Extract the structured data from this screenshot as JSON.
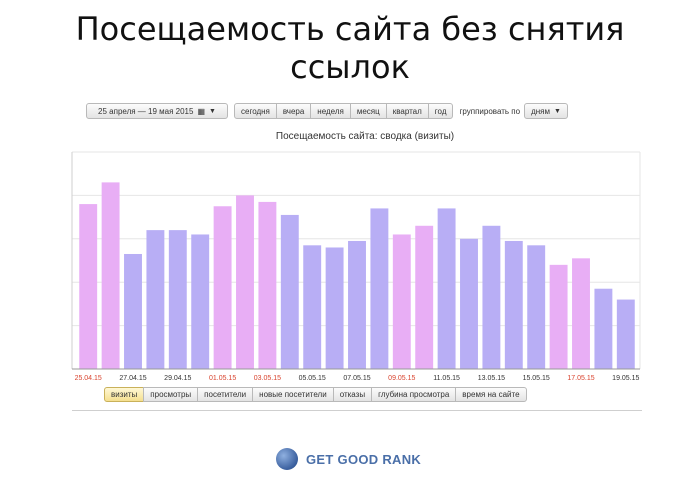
{
  "slide": {
    "title_line1": "Посещаемость сайта без снятия",
    "title_line2": "ссылок"
  },
  "toolbar": {
    "date_range": "25 апреля — 19 мая 2015",
    "periods": [
      "сегодня",
      "вчера",
      "неделя",
      "месяц",
      "квартал",
      "год"
    ],
    "group_label": "группировать по",
    "group_value": "дням"
  },
  "tabs": [
    "визиты",
    "просмотры",
    "посетители",
    "новые посетители",
    "отказы",
    "глубина просмотра",
    "время на сайте"
  ],
  "active_tab": "визиты",
  "logo": {
    "text": "GET GOOD RANK"
  },
  "colors": {
    "weekend": "#e8aef5",
    "weekday": "#b8aef5",
    "weekend_label": "#d9442f",
    "weekday_label": "#333333"
  },
  "chart_data": {
    "type": "bar",
    "title": "Посещаемость сайта: сводка (визиты)",
    "categories": [
      "25.04.15",
      "26.04.15",
      "27.04.15",
      "28.04.15",
      "29.04.15",
      "30.04.15",
      "01.05.15",
      "02.05.15",
      "03.05.15",
      "04.05.15",
      "05.05.15",
      "06.05.15",
      "07.05.15",
      "08.05.15",
      "09.05.15",
      "10.05.15",
      "11.05.15",
      "12.05.15",
      "13.05.15",
      "14.05.15",
      "15.05.15",
      "16.05.15",
      "17.05.15",
      "18.05.15",
      "19.05.15"
    ],
    "values": [
      76,
      86,
      53,
      64,
      64,
      62,
      75,
      80,
      77,
      71,
      57,
      56,
      59,
      74,
      62,
      66,
      74,
      60,
      66,
      59,
      57,
      48,
      51,
      37,
      32
    ],
    "weekend": [
      true,
      true,
      false,
      false,
      false,
      false,
      true,
      true,
      true,
      false,
      false,
      false,
      false,
      false,
      true,
      true,
      false,
      false,
      false,
      false,
      false,
      true,
      true,
      false,
      false
    ],
    "tick_labels_shown": [
      "25.04.15",
      "27.04.15",
      "29.04.15",
      "01.05.15",
      "03.05.15",
      "05.05.15",
      "07.05.15",
      "09.05.15",
      "11.05.15",
      "13.05.15",
      "15.05.15",
      "17.05.15",
      "19.05.15"
    ],
    "ylim": [
      0,
      100
    ],
    "grid": true,
    "legend": false,
    "xlabel": "",
    "ylabel": ""
  }
}
